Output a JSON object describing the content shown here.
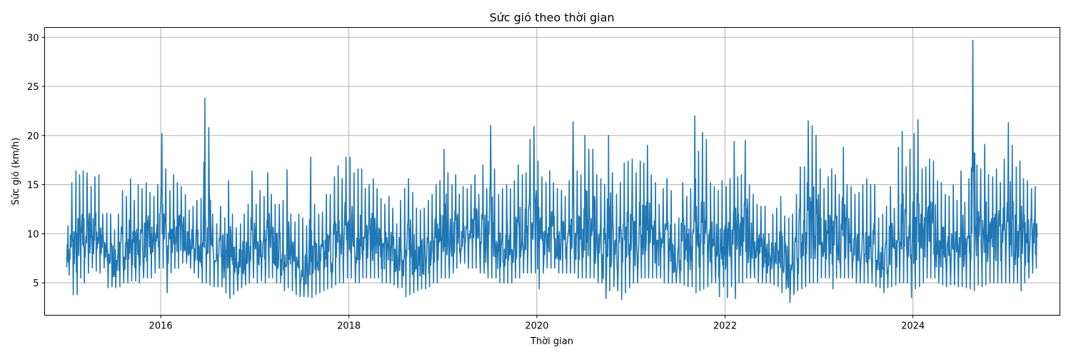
{
  "chart_data": {
    "type": "line",
    "title": "Sức gió theo thời gian",
    "xlabel": "Thời gian",
    "ylabel": "Sức gió (km/h)",
    "x_ticks": [
      "2016",
      "2018",
      "2020",
      "2022",
      "2024"
    ],
    "y_ticks": [
      5,
      10,
      15,
      20,
      25,
      30
    ],
    "xlim": [
      "2014-10-07",
      "2025-07-25"
    ],
    "ylim": [
      1.7,
      31
    ],
    "grid": true,
    "series_color": "#1f77b4",
    "series": [
      {
        "x": [
          "2015-01-01",
          "2015-01-15",
          "2015-02-01",
          "2015-02-15",
          "2015-03-01",
          "2015-03-15",
          "2015-04-01",
          "2015-04-15",
          "2015-05-01",
          "2015-05-15",
          "2015-06-01",
          "2015-06-15",
          "2015-07-01",
          "2015-07-15",
          "2015-08-01",
          "2015-08-15",
          "2015-09-01",
          "2015-09-15",
          "2015-10-01",
          "2015-10-15",
          "2015-11-01",
          "2015-11-15",
          "2015-12-01",
          "2015-12-15",
          "2016-01-01",
          "2016-01-15",
          "2016-02-01",
          "2016-02-15",
          "2016-03-01",
          "2016-03-15",
          "2016-04-01",
          "2016-04-15",
          "2016-05-01",
          "2016-05-15",
          "2016-06-01",
          "2016-06-15",
          "2016-07-01",
          "2016-07-15",
          "2016-08-01",
          "2016-08-15",
          "2016-09-01",
          "2016-09-15",
          "2016-10-01",
          "2016-10-15",
          "2016-11-01",
          "2016-11-15",
          "2016-12-01",
          "2016-12-15",
          "2017-01-01",
          "2017-01-15",
          "2017-02-01",
          "2017-02-15",
          "2017-03-01",
          "2017-03-15",
          "2017-04-01",
          "2017-04-15",
          "2017-05-01",
          "2017-05-15",
          "2017-06-01",
          "2017-06-15",
          "2017-07-01",
          "2017-07-15",
          "2017-08-01",
          "2017-08-15",
          "2017-09-01",
          "2017-09-15",
          "2017-10-01",
          "2017-10-15",
          "2017-11-01",
          "2017-11-15",
          "2017-12-01",
          "2017-12-15",
          "2018-01-01",
          "2018-01-15",
          "2018-02-01",
          "2018-02-15",
          "2018-03-01",
          "2018-03-15",
          "2018-04-01",
          "2018-04-15",
          "2018-05-01",
          "2018-05-15",
          "2018-06-01",
          "2018-06-15",
          "2018-07-01",
          "2018-07-15",
          "2018-08-01",
          "2018-08-15",
          "2018-09-01",
          "2018-09-15",
          "2018-10-01",
          "2018-10-15",
          "2018-11-01",
          "2018-11-15",
          "2018-12-01",
          "2018-12-15",
          "2019-01-01",
          "2019-01-15",
          "2019-02-01",
          "2019-02-15",
          "2019-03-01",
          "2019-03-15",
          "2019-04-01",
          "2019-04-15",
          "2019-05-01",
          "2019-05-15",
          "2019-06-01",
          "2019-06-15",
          "2019-07-01",
          "2019-07-15",
          "2019-08-01",
          "2019-08-15",
          "2019-09-01",
          "2019-09-15",
          "2019-10-01",
          "2019-10-15",
          "2019-11-01",
          "2019-11-15",
          "2019-12-01",
          "2019-12-15",
          "2020-01-01",
          "2020-01-15",
          "2020-02-01",
          "2020-02-15",
          "2020-03-01",
          "2020-03-15",
          "2020-04-01",
          "2020-04-15",
          "2020-05-01",
          "2020-05-15",
          "2020-06-01",
          "2020-06-15",
          "2020-07-01",
          "2020-07-15",
          "2020-08-01",
          "2020-08-15",
          "2020-09-01",
          "2020-09-15",
          "2020-10-01",
          "2020-10-15",
          "2020-11-01",
          "2020-11-15",
          "2020-12-01",
          "2020-12-15",
          "2021-01-01",
          "2021-01-15",
          "2021-02-01",
          "2021-02-15",
          "2021-03-01",
          "2021-03-15",
          "2021-04-01",
          "2021-04-15",
          "2021-05-01",
          "2021-05-15",
          "2021-06-01",
          "2021-06-15",
          "2021-07-01",
          "2021-07-15",
          "2021-08-01",
          "2021-08-15",
          "2021-09-01",
          "2021-09-15",
          "2021-10-01",
          "2021-10-15",
          "2021-11-01",
          "2021-11-15",
          "2021-12-01",
          "2021-12-15",
          "2022-01-01",
          "2022-01-15",
          "2022-02-01",
          "2022-02-15",
          "2022-03-01",
          "2022-03-15",
          "2022-04-01",
          "2022-04-15",
          "2022-05-01",
          "2022-05-15",
          "2022-06-01",
          "2022-06-15",
          "2022-07-01",
          "2022-07-15",
          "2022-08-01",
          "2022-08-15",
          "2022-09-01",
          "2022-09-15",
          "2022-10-01",
          "2022-10-15",
          "2022-11-01",
          "2022-11-15",
          "2022-12-01",
          "2022-12-15",
          "2023-01-01",
          "2023-01-15",
          "2023-02-01",
          "2023-02-15",
          "2023-03-01",
          "2023-03-15",
          "2023-04-01",
          "2023-04-15",
          "2023-05-01",
          "2023-05-15",
          "2023-06-01",
          "2023-06-15",
          "2023-07-01",
          "2023-07-15",
          "2023-08-01",
          "2023-08-15",
          "2023-09-01",
          "2023-09-15",
          "2023-10-01",
          "2023-10-15",
          "2023-11-01",
          "2023-11-15",
          "2023-12-01",
          "2023-12-15",
          "2024-01-01",
          "2024-01-15",
          "2024-02-01",
          "2024-02-15",
          "2024-03-01",
          "2024-03-15",
          "2024-04-01",
          "2024-04-15",
          "2024-05-01",
          "2024-05-15",
          "2024-06-01",
          "2024-06-15",
          "2024-07-01",
          "2024-07-15",
          "2024-08-01",
          "2024-08-15",
          "2024-09-01",
          "2024-09-15",
          "2024-10-01",
          "2024-10-15",
          "2024-11-01",
          "2024-11-15",
          "2024-12-01",
          "2024-12-15",
          "2025-01-01",
          "2025-01-15",
          "2025-02-01",
          "2025-02-15",
          "2025-03-01",
          "2025-03-15",
          "2025-04-01",
          "2025-04-15"
        ],
        "min": [
          5.8,
          3.8,
          3.8,
          5.5,
          5.0,
          6.0,
          6.5,
          6.2,
          6.0,
          6.5,
          4.5,
          4.6,
          4.5,
          4.6,
          5.0,
          5.0,
          5.2,
          5.2,
          5.0,
          5.5,
          5.5,
          5.5,
          6.0,
          6.5,
          6.5,
          4.0,
          6.0,
          6.5,
          6.5,
          7.0,
          7.0,
          6.5,
          6.0,
          5.5,
          5.0,
          5.0,
          4.8,
          4.6,
          4.6,
          4.6,
          4.0,
          3.4,
          3.8,
          4.2,
          4.5,
          4.8,
          5.0,
          5.5,
          5.0,
          5.2,
          5.0,
          5.5,
          5.5,
          5.0,
          5.0,
          4.2,
          4.5,
          4.2,
          3.8,
          3.6,
          3.6,
          3.6,
          3.5,
          3.8,
          4.0,
          4.2,
          4.4,
          4.5,
          4.8,
          5.0,
          5.0,
          5.5,
          5.5,
          5.0,
          5.0,
          5.5,
          5.5,
          5.5,
          5.5,
          5.5,
          5.0,
          5.0,
          5.0,
          4.8,
          4.5,
          4.5,
          3.6,
          3.8,
          4.0,
          4.2,
          4.4,
          4.4,
          4.6,
          5.0,
          5.0,
          5.5,
          5.5,
          5.5,
          6.0,
          6.5,
          7.0,
          7.0,
          6.5,
          6.5,
          6.5,
          6.0,
          6.0,
          5.5,
          5.5,
          5.5,
          5.0,
          5.0,
          5.0,
          5.0,
          5.5,
          5.5,
          6.0,
          6.0,
          6.0,
          6.0,
          4.4,
          6.0,
          6.5,
          6.5,
          6.5,
          6.0,
          6.0,
          6.0,
          6.0,
          6.0,
          5.5,
          5.5,
          5.5,
          5.5,
          5.5,
          5.0,
          5.0,
          3.4,
          4.2,
          4.6,
          4.2,
          3.3,
          4.0,
          4.5,
          5.0,
          5.0,
          5.5,
          5.5,
          5.5,
          5.5,
          5.5,
          5.5,
          5.0,
          5.0,
          5.0,
          5.0,
          5.0,
          4.8,
          4.6,
          4.6,
          4.0,
          4.2,
          4.4,
          4.6,
          5.0,
          5.0,
          3.6,
          4.6,
          3.5,
          4.6,
          3.4,
          5.0,
          5.0,
          5.5,
          5.5,
          5.5,
          5.0,
          5.0,
          5.0,
          5.0,
          4.8,
          4.6,
          4.0,
          4.4,
          3.0,
          3.8,
          4.2,
          4.4,
          4.6,
          5.0,
          5.0,
          5.0,
          5.5,
          5.5,
          5.5,
          4.4,
          5.5,
          5.5,
          5.5,
          5.5,
          5.5,
          5.0,
          5.0,
          5.0,
          5.0,
          5.0,
          4.6,
          4.5,
          4.0,
          4.5,
          4.6,
          4.8,
          5.0,
          5.0,
          5.0,
          3.5,
          4.4,
          4.6,
          5.0,
          5.5,
          5.5,
          5.5,
          5.0,
          4.8,
          4.6,
          4.8,
          4.8,
          4.6,
          4.6,
          4.5,
          4.4,
          4.2,
          4.8,
          4.6,
          4.8,
          5.0,
          5.0,
          5.0,
          5.0,
          5.0,
          5.0,
          5.0,
          5.0,
          4.2,
          5.0,
          5.5,
          6.0,
          6.5
        ],
        "max": [
          10.8,
          15.2,
          16.4,
          16.0,
          16.4,
          16.2,
          14.8,
          15.8,
          16.0,
          12.0,
          12.1,
          12.0,
          10.4,
          12.0,
          14.4,
          13.8,
          15.6,
          13.4,
          15.0,
          14.6,
          15.2,
          14.2,
          13.8,
          15.0,
          20.2,
          16.6,
          14.4,
          16.0,
          15.2,
          14.8,
          14.0,
          12.4,
          12.8,
          13.4,
          13.6,
          23.8,
          20.8,
          12.0,
          11.0,
          12.8,
          11.6,
          15.4,
          12.0,
          10.6,
          11.0,
          12.0,
          13.0,
          16.4,
          13.0,
          14.4,
          13.8,
          16.2,
          14.0,
          13.0,
          13.0,
          13.4,
          16.5,
          12.0,
          11.2,
          12.0,
          11.6,
          10.8,
          17.8,
          13.0,
          12.0,
          12.2,
          14.0,
          14.0,
          15.8,
          16.9,
          15.6,
          17.8,
          17.8,
          16.2,
          16.6,
          16.6,
          14.6,
          15.0,
          15.6,
          14.6,
          13.6,
          13.0,
          13.8,
          12.6,
          11.0,
          13.4,
          14.6,
          15.6,
          14.2,
          12.6,
          12.4,
          12.6,
          13.4,
          14.0,
          15.0,
          15.4,
          18.6,
          16.2,
          15.0,
          16.0,
          14.0,
          14.8,
          14.6,
          15.0,
          16.0,
          14.0,
          17.0,
          14.6,
          21.0,
          16.6,
          14.0,
          14.6,
          15.0,
          14.6,
          15.4,
          17.0,
          16.0,
          16.2,
          19.6,
          20.9,
          17.4,
          15.8,
          15.2,
          16.4,
          15.2,
          14.6,
          14.4,
          13.8,
          15.4,
          21.4,
          16.4,
          16.0,
          20.0,
          18.6,
          18.6,
          16.0,
          15.6,
          15.0,
          20.0,
          16.2,
          14.0,
          15.2,
          17.2,
          17.4,
          17.6,
          16.2,
          17.4,
          17.2,
          19.0,
          16.0,
          15.2,
          13.0,
          14.6,
          15.6,
          14.4,
          11.0,
          11.6,
          15.2,
          13.8,
          14.6,
          22.0,
          18.4,
          20.3,
          19.6,
          15.2,
          14.8,
          14.4,
          15.4,
          14.8,
          15.6,
          19.4,
          15.8,
          16.0,
          19.5,
          15.0,
          14.0,
          13.0,
          12.8,
          12.8,
          10.0,
          12.0,
          12.6,
          13.8,
          11.8,
          11.6,
          12.0,
          14.0,
          16.8,
          16.8,
          21.5,
          21.0,
          20.0,
          16.6,
          14.6,
          15.8,
          16.6,
          16.0,
          14.0,
          18.8,
          15.0,
          14.8,
          14.0,
          14.2,
          15.0,
          15.6,
          15.0,
          15.0,
          11.6,
          12.0,
          12.8,
          14.8,
          12.6,
          18.8,
          20.4,
          16.8,
          18.6,
          20.2,
          21.6,
          16.6,
          16.8,
          17.6,
          17.4,
          15.4,
          15.2,
          14.0,
          13.8,
          15.0,
          13.4,
          16.4,
          13.2,
          15.6,
          29.7,
          17.0,
          16.6,
          19.1,
          16.0,
          15.8,
          16.6,
          15.2,
          17.6,
          21.3,
          19.0,
          16.8,
          17.4,
          15.6,
          15.4,
          14.6,
          14.8
        ]
      }
    ]
  }
}
